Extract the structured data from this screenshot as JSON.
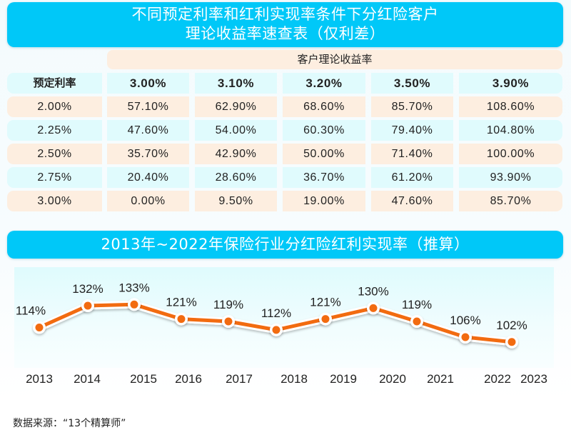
{
  "header": {
    "title_line1": "不同预定利率和红利实现率条件下分红险客户",
    "title_line2": "理论收益率速查表（仅利差）"
  },
  "table": {
    "group_header": "客户理论收益率",
    "row_header_label": "预定利率",
    "columns": [
      "3.00%",
      "3.10%",
      "3.20%",
      "3.50%",
      "3.90%"
    ],
    "rows": [
      {
        "label": "2.00%",
        "values": [
          "57.10%",
          "62.90%",
          "68.60%",
          "85.70%",
          "108.60%"
        ]
      },
      {
        "label": "2.25%",
        "values": [
          "47.60%",
          "54.00%",
          "60.30%",
          "79.40%",
          "104.80%"
        ]
      },
      {
        "label": "2.50%",
        "values": [
          "35.70%",
          "42.90%",
          "50.00%",
          "71.40%",
          "100.00%"
        ]
      },
      {
        "label": "2.75%",
        "values": [
          "20.40%",
          "28.60%",
          "36.70%",
          "61.20%",
          "93.90%"
        ]
      },
      {
        "label": "3.00%",
        "values": [
          "0.00%",
          "9.50%",
          "19.00%",
          "47.60%",
          "85.70%"
        ]
      }
    ]
  },
  "chart_data": {
    "type": "line",
    "title": "2013年~2022年保险行业分红险红利实现率（推算）",
    "xlabel": "",
    "ylabel": "",
    "x_tick_labels": [
      "2013",
      "2014",
      "2015",
      "2016",
      "2017",
      "2018",
      "2019",
      "2020",
      "2021",
      "2022",
      "2023"
    ],
    "series": [
      {
        "name": "红利实现率",
        "values": [
          114,
          132,
          133,
          121,
          119,
          112,
          121,
          130,
          119,
          106,
          102
        ],
        "labels": [
          "114%",
          "132%",
          "133%",
          "121%",
          "119%",
          "112%",
          "121%",
          "130%",
          "119%",
          "106%",
          "102%"
        ],
        "color": "#f26b10"
      }
    ],
    "ylim": [
      95,
      140
    ],
    "grid": false,
    "legend": "none"
  },
  "colors": {
    "title_bar": "#00c8f8",
    "row_blue": "#e0fbfd",
    "row_peach": "#fdeee0",
    "line": "#f26b10"
  },
  "footer": {
    "source": "数据来源：“13个精算师”"
  }
}
